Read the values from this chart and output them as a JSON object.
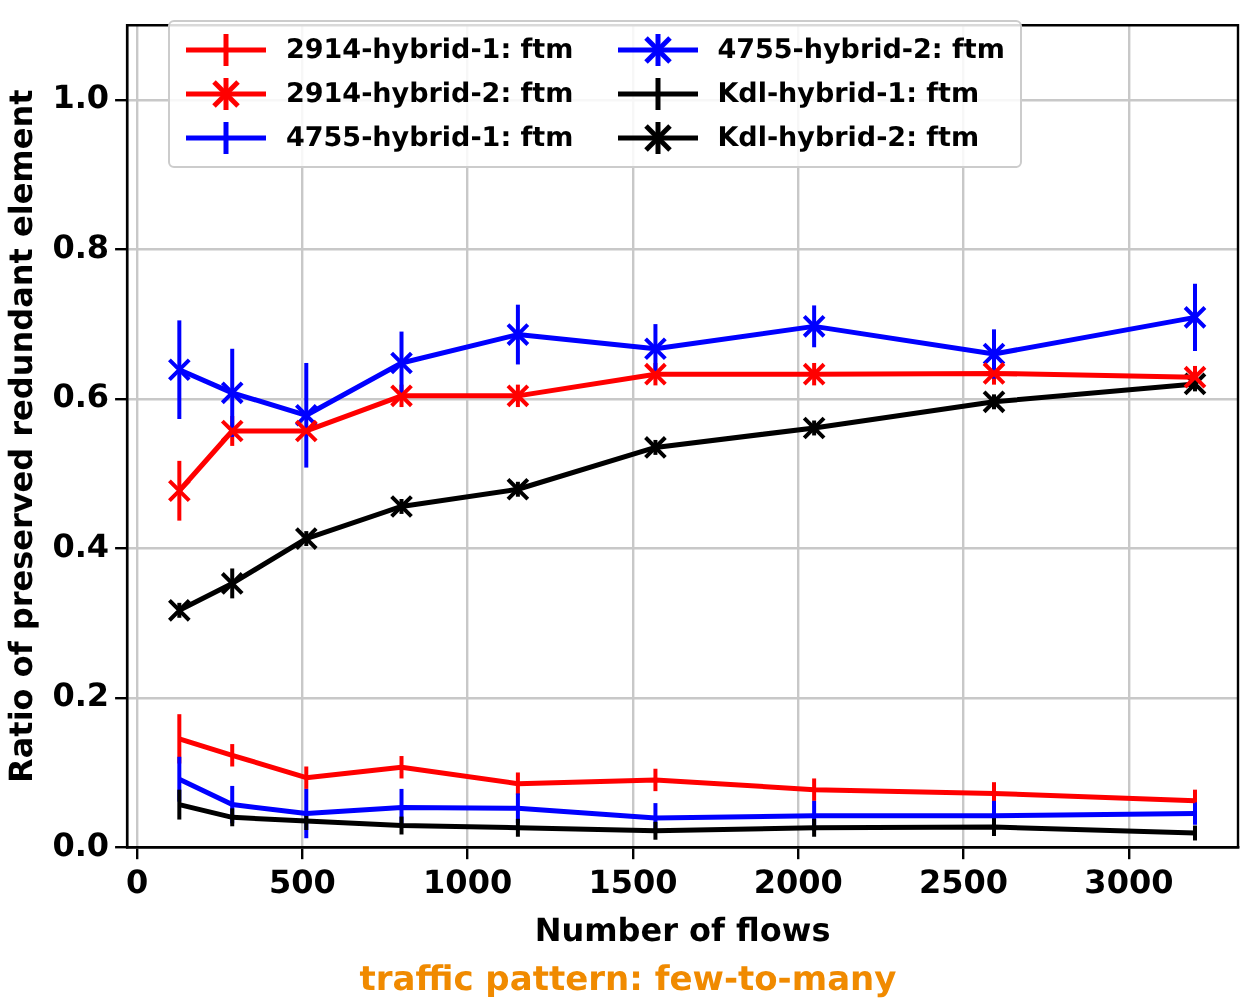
{
  "chart_data": {
    "type": "line",
    "xlabel": "Number of flows",
    "ylabel": "Ratio of preserved redundant element",
    "annotations": [
      "traffic pattern: few-to-many"
    ],
    "x": [
      128,
      288,
      512,
      800,
      1152,
      1568,
      2048,
      2592,
      3200
    ],
    "xlim": [
      -30,
      3330
    ],
    "xticks": [
      0,
      500,
      1000,
      1500,
      2000,
      2500,
      3000
    ],
    "ylim": [
      0,
      1.1
    ],
    "yticks": [
      {
        "value": 0,
        "label": "0.0"
      },
      0.2,
      0.4,
      0.6,
      0.8,
      {
        "value": 1,
        "label": "1.0"
      }
    ],
    "grid": true,
    "legend": "top left",
    "line_style": "solid",
    "series": [
      {
        "name": "2914-hybrid-1: ftm",
        "color": "#ff0000",
        "marker": "none",
        "values": [
          0.145,
          0.123,
          0.093,
          0.107,
          0.085,
          0.09,
          0.077,
          0.072,
          0.062
        ],
        "errors": [
          0.033,
          0.015,
          0.015,
          0.015,
          0.015,
          0.015,
          0.015,
          0.015,
          0.015
        ]
      },
      {
        "name": "2914-hybrid-2: ftm",
        "color": "#ff0000",
        "marker": "cross",
        "values": [
          0.477,
          0.557,
          0.557,
          0.604,
          0.604,
          0.633,
          0.633,
          0.634,
          0.629
        ],
        "errors": [
          0.04,
          0.02,
          null,
          0.015,
          0.015,
          0.015,
          0.015,
          0.015,
          0.015
        ]
      },
      {
        "name": "4755-hybrid-1: ftm",
        "color": "#0000ff",
        "marker": "none",
        "values": [
          0.091,
          0.057,
          0.045,
          0.053,
          0.052,
          0.039,
          0.042,
          0.042,
          0.045
        ],
        "errors": [
          0.03,
          0.025,
          0.033,
          0.025,
          0.02,
          0.02,
          0.02,
          0.02,
          0.015
        ]
      },
      {
        "name": "4755-hybrid-2: ftm",
        "color": "#0000ff",
        "marker": "cross",
        "values": [
          0.639,
          0.608,
          0.578,
          0.648,
          0.686,
          0.667,
          0.697,
          0.66,
          0.709
        ],
        "errors": [
          0.066,
          0.059,
          0.07,
          0.042,
          0.04,
          0.033,
          0.028,
          0.033,
          0.045
        ]
      },
      {
        "name": "Kdl-hybrid-1: ftm",
        "color": "#000000",
        "marker": "none",
        "values": [
          0.057,
          0.04,
          0.035,
          0.029,
          0.026,
          0.022,
          0.026,
          0.027,
          0.019
        ],
        "errors": [
          0.02,
          0.012,
          0.012,
          0.012,
          0.012,
          0.012,
          0.012,
          0.012,
          0.01
        ]
      },
      {
        "name": "Kdl-hybrid-2: ftm",
        "color": "#000000",
        "marker": "cross",
        "values": [
          0.317,
          0.353,
          0.413,
          0.456,
          0.479,
          0.535,
          0.561,
          0.596,
          0.62
        ],
        "errors": [
          0.01,
          0.02,
          0.01,
          0.01,
          0.01,
          0.01,
          0.01,
          0.01,
          0.01
        ]
      }
    ]
  }
}
